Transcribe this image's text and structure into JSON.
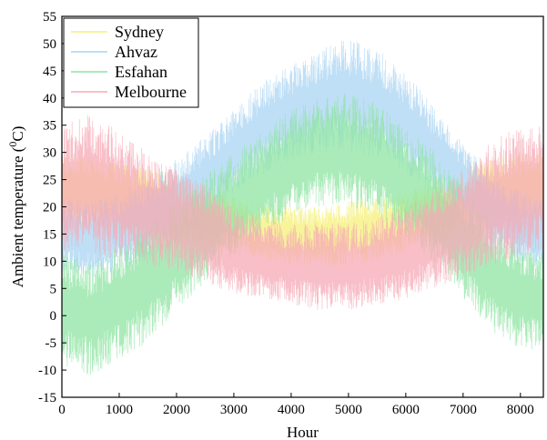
{
  "chart_data": {
    "type": "line",
    "xlabel": "Hour",
    "ylabel_base": "Ambient temperature (",
    "ylabel_sup": "0",
    "ylabel_tail": "C)",
    "xlim": [
      0,
      8400
    ],
    "ylim": [
      -15,
      55
    ],
    "x_ticks": [
      0,
      1000,
      2000,
      3000,
      4000,
      5000,
      6000,
      7000,
      8000
    ],
    "y_ticks": [
      -15,
      -10,
      -5,
      0,
      5,
      10,
      15,
      20,
      25,
      30,
      35,
      40,
      45,
      50,
      55
    ],
    "legend_position": "top-left",
    "grid": false,
    "series": [
      {
        "name": "Sydney",
        "color": "#f5f07a",
        "x": [
          0,
          500,
          1000,
          1500,
          2000,
          2500,
          3000,
          3500,
          4000,
          4500,
          5000,
          5500,
          6000,
          6500,
          7000,
          7500,
          8000,
          8400
        ],
        "y_min": [
          17,
          16,
          15,
          14,
          13,
          12,
          11,
          10,
          9,
          9,
          9,
          10,
          11,
          13,
          14,
          15,
          16,
          17
        ],
        "y_max": [
          30,
          29,
          28,
          27,
          26,
          24,
          22,
          21,
          20,
          20,
          21,
          22,
          23,
          25,
          27,
          29,
          30,
          30
        ]
      },
      {
        "name": "Ahvaz",
        "color": "#a9d4f3",
        "x": [
          0,
          500,
          1000,
          1500,
          2000,
          2500,
          3000,
          3500,
          4000,
          4500,
          5000,
          5500,
          6000,
          6500,
          7000,
          7500,
          8000,
          8400
        ],
        "y_min": [
          8,
          7,
          8,
          10,
          13,
          17,
          22,
          26,
          28,
          30,
          30,
          29,
          26,
          22,
          17,
          12,
          9,
          8
        ],
        "y_max": [
          22,
          21,
          23,
          25,
          29,
          33,
          38,
          43,
          46,
          49,
          51,
          49,
          45,
          38,
          32,
          26,
          23,
          22
        ]
      },
      {
        "name": "Esfahan",
        "color": "#8fe4a3",
        "x": [
          0,
          500,
          1000,
          1500,
          2000,
          2500,
          3000,
          3500,
          4000,
          4500,
          5000,
          5500,
          6000,
          6500,
          7000,
          7500,
          8000,
          8400
        ],
        "y_min": [
          -9,
          -11,
          -8,
          -5,
          1,
          6,
          11,
          15,
          18,
          20,
          20,
          18,
          14,
          9,
          3,
          -3,
          -6,
          -7
        ],
        "y_max": [
          12,
          10,
          13,
          17,
          21,
          26,
          30,
          34,
          38,
          40,
          41,
          39,
          35,
          30,
          24,
          17,
          13,
          12
        ]
      },
      {
        "name": "Melbourne",
        "color": "#f5aab6",
        "x": [
          0,
          500,
          1000,
          1500,
          2000,
          2500,
          3000,
          3500,
          4000,
          4500,
          5000,
          5500,
          6000,
          6500,
          7000,
          7500,
          8000,
          8400
        ],
        "y_min": [
          12,
          11,
          10,
          9,
          8,
          6,
          4,
          3,
          2,
          1,
          1,
          2,
          3,
          5,
          7,
          9,
          11,
          12
        ],
        "y_max": [
          35,
          37,
          34,
          30,
          27,
          24,
          20,
          18,
          17,
          17,
          17,
          18,
          20,
          23,
          27,
          32,
          35,
          35
        ]
      }
    ]
  }
}
